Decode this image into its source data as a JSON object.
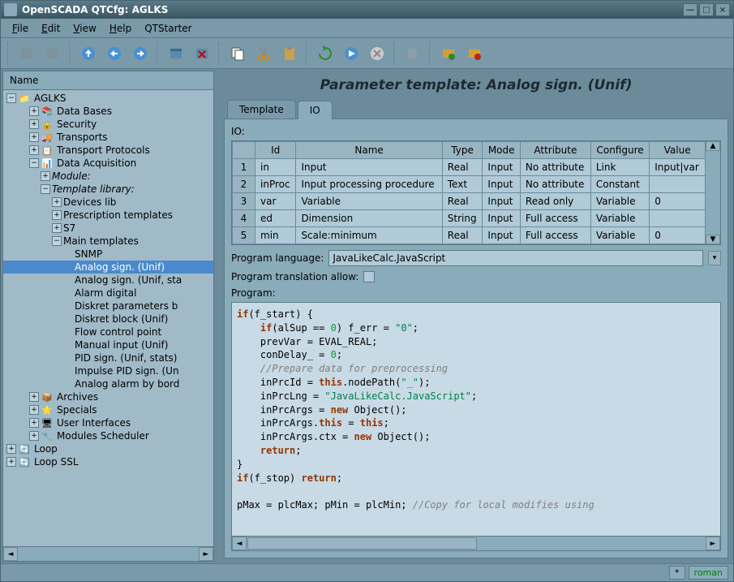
{
  "window_title": "OpenSCADA QTCfg: AGLKS",
  "menu": [
    "File",
    "Edit",
    "View",
    "Help",
    "QTStarter"
  ],
  "tree_header": "Name",
  "tree": {
    "root": "AGLKS",
    "items": [
      {
        "l": "Data Bases",
        "i": "📚",
        "d": 1,
        "t": "+"
      },
      {
        "l": "Security",
        "i": "🔒",
        "d": 1,
        "t": "+"
      },
      {
        "l": "Transports",
        "i": "🚚",
        "d": 1,
        "t": "+"
      },
      {
        "l": "Transport Protocols",
        "i": "📋",
        "d": 1,
        "t": "+"
      },
      {
        "l": "Data Acquisition",
        "i": "📊",
        "d": 1,
        "t": "-"
      },
      {
        "l": "Module:",
        "d": 2,
        "t": "+",
        "it": true
      },
      {
        "l": "Template library:",
        "d": 2,
        "t": "-",
        "it": true
      },
      {
        "l": "Devices lib",
        "d": 3,
        "t": "+"
      },
      {
        "l": "Prescription templates",
        "d": 3,
        "t": "+"
      },
      {
        "l": "S7",
        "d": 3,
        "t": "+"
      },
      {
        "l": "Main templates",
        "d": 3,
        "t": "-"
      },
      {
        "l": "SNMP",
        "d": 4,
        "t": ""
      },
      {
        "l": "Analog sign. (Unif)",
        "d": 4,
        "t": "",
        "sel": true
      },
      {
        "l": "Analog sign. (Unif, sta",
        "d": 4,
        "t": ""
      },
      {
        "l": "Alarm digital",
        "d": 4,
        "t": ""
      },
      {
        "l": "Diskret parameters b",
        "d": 4,
        "t": ""
      },
      {
        "l": "Diskret block (Unif)",
        "d": 4,
        "t": ""
      },
      {
        "l": "Flow control point",
        "d": 4,
        "t": ""
      },
      {
        "l": "Manual input (Unif)",
        "d": 4,
        "t": ""
      },
      {
        "l": "PID sign. (Unif, stats)",
        "d": 4,
        "t": ""
      },
      {
        "l": "Impulse PID sign. (Un",
        "d": 4,
        "t": ""
      },
      {
        "l": "Analog alarm by bord",
        "d": 4,
        "t": ""
      },
      {
        "l": "Archives",
        "i": "📦",
        "d": 1,
        "t": "+"
      },
      {
        "l": "Specials",
        "i": "⭐",
        "d": 1,
        "t": "+"
      },
      {
        "l": "User Interfaces",
        "i": "🖥",
        "d": 1,
        "t": "+"
      },
      {
        "l": "Modules Scheduler",
        "i": "🔧",
        "d": 1,
        "t": "+"
      },
      {
        "l": "Loop",
        "i": "🔄",
        "d": 0,
        "t": "+",
        "root": true
      },
      {
        "l": "Loop SSL",
        "i": "🔄",
        "d": 0,
        "t": "+",
        "root": true
      }
    ]
  },
  "page_title": "Parameter template: Analog sign. (Unif)",
  "tabs": [
    "Template",
    "IO"
  ],
  "active_tab": 1,
  "io_label": "IO:",
  "io_columns": [
    "",
    "Id",
    "Name",
    "Type",
    "Mode",
    "Attribute",
    "Configure",
    "Value"
  ],
  "io_rows": [
    [
      "1",
      "in",
      "Input",
      "Real",
      "Input",
      "No attribute",
      "Link",
      "Input|var"
    ],
    [
      "2",
      "inProc",
      "Input processing procedure",
      "Text",
      "Input",
      "No attribute",
      "Constant",
      ""
    ],
    [
      "3",
      "var",
      "Variable",
      "Real",
      "Input",
      "Read only",
      "Variable",
      "0"
    ],
    [
      "4",
      "ed",
      "Dimension",
      "String",
      "Input",
      "Full access",
      "Variable",
      ""
    ],
    [
      "5",
      "min",
      "Scale:minimum",
      "Real",
      "Input",
      "Full access",
      "Variable",
      "0"
    ]
  ],
  "prog_lang_label": "Program language:",
  "prog_lang_value": "JavaLikeCalc.JavaScript",
  "prog_trans_label": "Program translation allow:",
  "prog_label": "Program:",
  "status_user": "roman"
}
